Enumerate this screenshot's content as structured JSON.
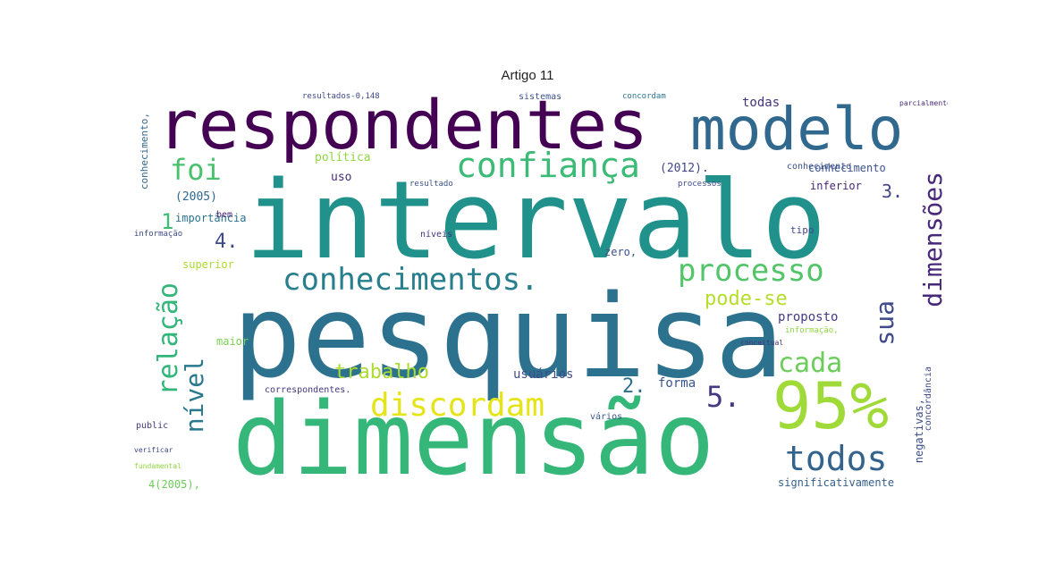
{
  "figure": {
    "title": "Artigo 11",
    "words": [
      {
        "text": "intervalo"
      },
      {
        "text": "pesquisa"
      },
      {
        "text": "dimensão"
      },
      {
        "text": "respondentes"
      },
      {
        "text": "modelo"
      },
      {
        "text": "95%"
      },
      {
        "text": "confiança"
      },
      {
        "text": "processo"
      },
      {
        "text": "conhecimentos."
      },
      {
        "text": "discordam"
      },
      {
        "text": "todos"
      },
      {
        "text": "cada"
      },
      {
        "text": "relação"
      },
      {
        "text": "nível"
      },
      {
        "text": "dimensões"
      },
      {
        "text": "sua"
      },
      {
        "text": "foi"
      },
      {
        "text": "trabalho"
      },
      {
        "text": "5."
      },
      {
        "text": "2."
      },
      {
        "text": "3."
      },
      {
        "text": "4."
      },
      {
        "text": "1"
      },
      {
        "text": "pode-se"
      },
      {
        "text": "usuários"
      },
      {
        "text": "forma"
      },
      {
        "text": "proposto"
      },
      {
        "text": "todas"
      },
      {
        "text": "conhecimento"
      },
      {
        "text": "(2012)."
      },
      {
        "text": "(2005)"
      },
      {
        "text": "política"
      },
      {
        "text": "uso"
      },
      {
        "text": "importância"
      },
      {
        "text": "superior"
      },
      {
        "text": "zero,"
      },
      {
        "text": "maior"
      },
      {
        "text": "inferior"
      },
      {
        "text": "tipo"
      },
      {
        "text": "significativamente"
      },
      {
        "text": "negativas,"
      },
      {
        "text": "concordância"
      },
      {
        "text": "correspondentes."
      },
      {
        "text": "vários"
      },
      {
        "text": "public"
      },
      {
        "text": "4(2005),"
      },
      {
        "text": "conhecimento,"
      },
      {
        "text": "informação"
      },
      {
        "text": "níveis"
      },
      {
        "text": "resultado"
      },
      {
        "text": "bem"
      },
      {
        "text": "conhecimento"
      },
      {
        "text": "resultados-0,148"
      },
      {
        "text": "sistemas"
      },
      {
        "text": "concordam"
      },
      {
        "text": "parcialmente"
      },
      {
        "text": "informação,"
      },
      {
        "text": "processos"
      },
      {
        "text": "conceitual"
      },
      {
        "text": "verificar"
      },
      {
        "text": "fundamental"
      }
    ]
  }
}
